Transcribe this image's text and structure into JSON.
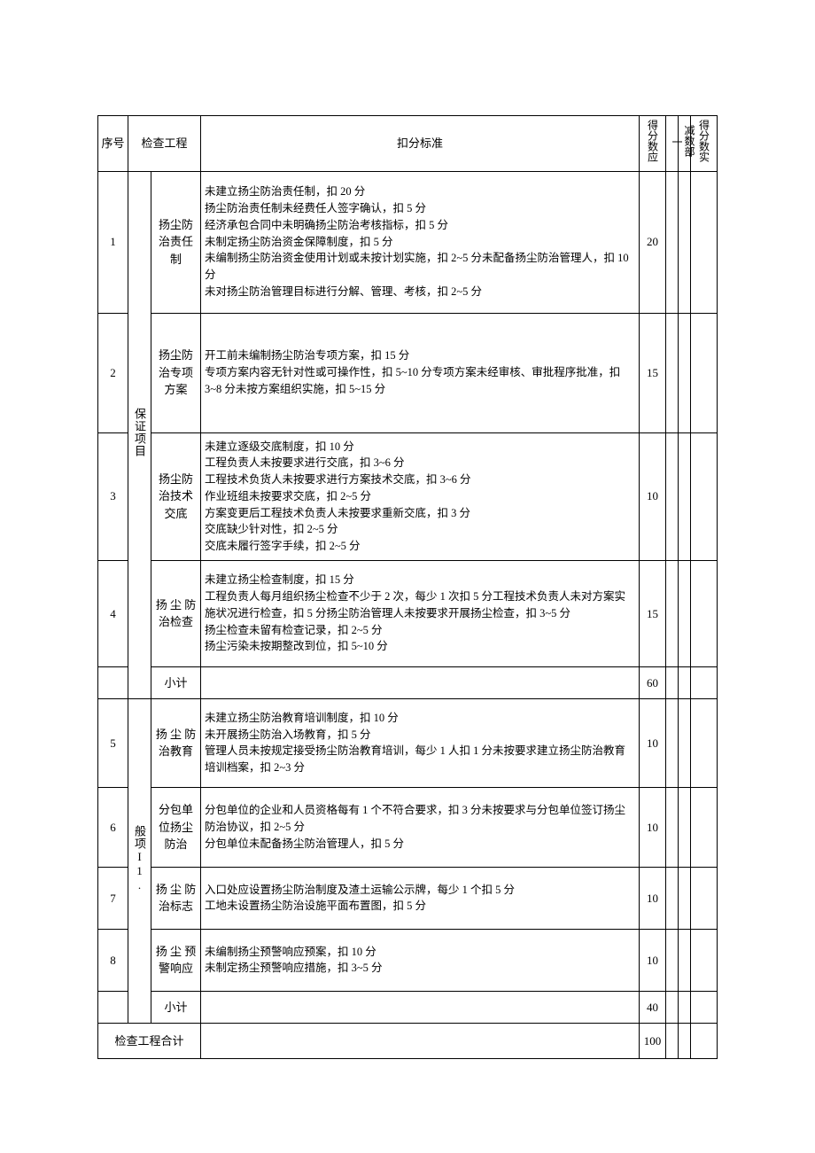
{
  "header": {
    "seq": "序号",
    "project": "检查工程",
    "criteria": "扣分标准",
    "score_due": "得分数应",
    "deduct_left": "一",
    "deduct_mid": "减数部",
    "score_actual": "得分数实"
  },
  "categories": {
    "guarantee": "保证项目",
    "general": "般项I1."
  },
  "rows": {
    "r1": {
      "seq": "1",
      "item": "扬尘防治责任制",
      "criteria": "未建立扬尘防治责任制，扣 20 分\n扬尘防治责任制未经费任人签字确认，扣 5 分\n经济承包合同中未明确扬尘防治考核指标，扣 5 分\n未制定扬尘防治资金保障制度，扣 5 分\n未编制扬尘防治资金使用计划或未按计划实施，扣 2~5 分未配备扬尘防治管理人，扣 10 分\n未对扬尘防治管理目标进行分解、管理、考核，扣 2~5 分",
      "score": "20"
    },
    "r2": {
      "seq": "2",
      "item": "扬尘防治专项方案",
      "criteria": "开工前未编制扬尘防治专项方案，扣 15 分\n专项方案内容无针对性或可操作性，扣 5~10 分专项方案未经审核、审批程序批准，扣 3~8 分未按方案组织实施，扣 5~15 分",
      "score": "15"
    },
    "r3": {
      "seq": "3",
      "item": "扬尘防治技术交底",
      "criteria": "未建立逐级交底制度，扣 10 分\n工程负责人未按要求进行交底，扣 3~6 分\n工程技术负货人未按要求进行方案技术交底，扣 3~6 分\n作业班组未按要求交底，扣 2~5 分\n方案变更后工程技术负责人未按要求重新交底，扣 3 分\n交底缺少针对性，扣 2~5 分\n交底未履行签字手续，扣 2~5 分",
      "score": "10"
    },
    "r4": {
      "seq": "4",
      "item": "扬 尘 防治检查",
      "criteria": "未建立扬尘检查制度，扣 15 分\n工程负责人每月组织扬尘检查不少于 2 次，每少 1 次扣 5 分工程技术负责人未对方案实施状况进行检查，扣 5 分扬尘防治管理人未按要求开展扬尘检查，扣 3~5 分\n扬尘检查未留有检查记录，扣 2~5 分\n扬尘污染未按期整改到位，扣 5~10 分",
      "score": "15"
    },
    "sub1": {
      "label": "小计",
      "score": "60"
    },
    "r5": {
      "seq": "5",
      "item": "扬 尘 防治教育",
      "criteria": "未建立扬尘防治教育培训制度，扣 10 分\n未开展扬尘防治入场教育，扣 5 分\n管理人员未按规定接受扬尘防治教育培训，每少 1 人扣 1 分未按要求建立扬尘防治教育培训档案，扣 2~3 分",
      "score": "10"
    },
    "r6": {
      "seq": "6",
      "item": "分包单位扬尘防治",
      "criteria": "分包单位的企业和人员资格每有 1 个不符合要求，扣 3 分未按要求与分包单位签订扬尘防治协议，扣 2~5 分\n分包单位未配备扬尘防治管理人，扣 5 分",
      "score": "10"
    },
    "r7": {
      "seq": "7",
      "item": "扬 尘 防治标志",
      "criteria": "入口处应设置扬尘防治制度及渣土运输公示牌，每少 1 个扣 5 分\n工地未设置扬尘防治设施平面布置图，扣 5 分",
      "score": "10"
    },
    "r8": {
      "seq": "8",
      "item": "扬 尘 预警响应",
      "criteria": "未编制扬尘预警响应预案，扣 10 分\n未制定扬尘预警响应措施，扣 3~5 分",
      "score": "10"
    },
    "sub2": {
      "label": "小计",
      "score": "40"
    },
    "total": {
      "label": "检查工程合计",
      "score": "100"
    }
  }
}
